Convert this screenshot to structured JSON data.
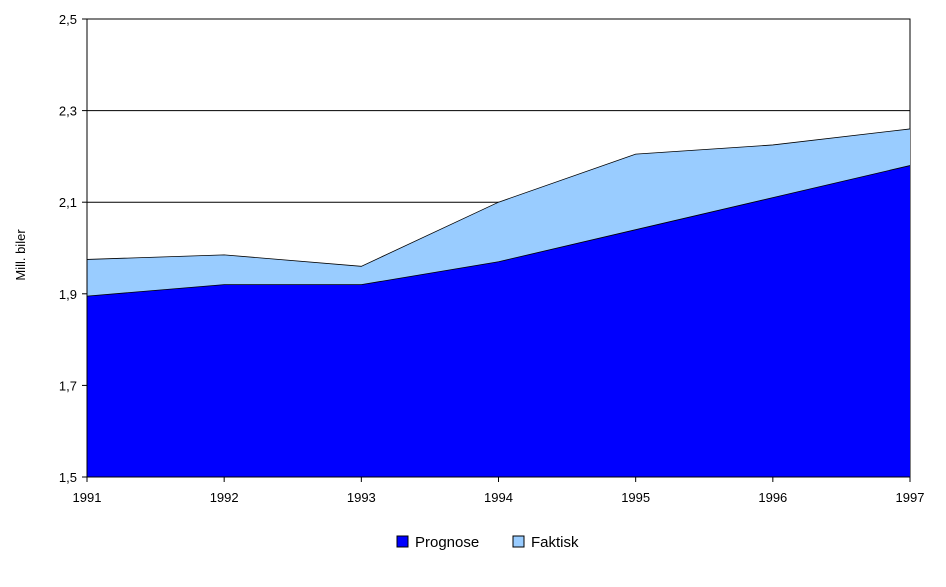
{
  "chart_data": {
    "type": "area",
    "title": "",
    "xlabel": "",
    "ylabel": "Mill. biler",
    "x": [
      "1991",
      "1992",
      "1993",
      "1994",
      "1995",
      "1996",
      "1997"
    ],
    "ylim": [
      1.5,
      2.5
    ],
    "yticks": [
      "1,5",
      "1,7",
      "1,9",
      "2,1",
      "2,3",
      "2,5"
    ],
    "grid": true,
    "legend_position": "bottom",
    "series": [
      {
        "name": "Prognose",
        "color": "#0000ff",
        "values": [
          1.895,
          1.92,
          1.92,
          1.97,
          2.04,
          2.11,
          2.18
        ]
      },
      {
        "name": "Faktisk",
        "color": "#99ccff",
        "values": [
          1.975,
          1.985,
          1.96,
          2.1,
          2.205,
          2.225,
          2.26
        ]
      }
    ]
  }
}
